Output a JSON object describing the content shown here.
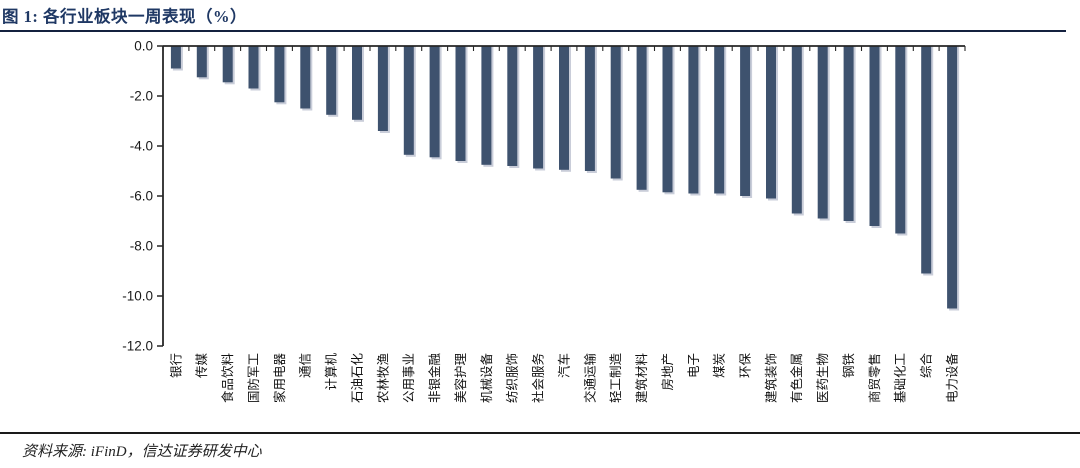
{
  "figure": {
    "title": "图 1: 各行业板块一周表现（%）",
    "source_note": "资料来源: iFinD，信达证券研发中心"
  },
  "colors": {
    "title": "#1f3864",
    "title_rule": "#14213f",
    "bar": "#3e526e",
    "bar_shadow": "#c9cdd9",
    "axis": "#262626",
    "tick_label": "#1a1a1a"
  },
  "chart_data": {
    "type": "bar",
    "title": "各行业板块一周表现（%）",
    "categories": [
      "银行",
      "传媒",
      "食品饮料",
      "国防军工",
      "家用电器",
      "通信",
      "计算机",
      "石油石化",
      "农林牧渔",
      "公用事业",
      "非银金融",
      "美容护理",
      "机械设备",
      "纺织服饰",
      "社会服务",
      "汽车",
      "交通运输",
      "轻工制造",
      "建筑材料",
      "房地产",
      "电子",
      "煤炭",
      "环保",
      "建筑装饰",
      "有色金属",
      "医药生物",
      "钢铁",
      "商贸零售",
      "基础化工",
      "综合",
      "电力设备"
    ],
    "values": [
      -0.9,
      -1.25,
      -1.45,
      -1.7,
      -2.25,
      -2.5,
      -2.75,
      -2.95,
      -3.4,
      -4.35,
      -4.45,
      -4.6,
      -4.75,
      -4.8,
      -4.9,
      -4.95,
      -5.0,
      -5.3,
      -5.75,
      -5.85,
      -5.9,
      -5.9,
      -6.0,
      -6.1,
      -6.7,
      -6.9,
      -7.0,
      -7.2,
      -7.5,
      -9.1,
      -10.5
    ],
    "xlabel": "",
    "ylabel": "",
    "ylim": [
      -12.0,
      0.0
    ],
    "y_ticks": [
      0.0,
      -2.0,
      -4.0,
      -6.0,
      -8.0,
      -10.0,
      -12.0
    ],
    "x_label_rotation": -90,
    "grid": false,
    "legend": false
  }
}
